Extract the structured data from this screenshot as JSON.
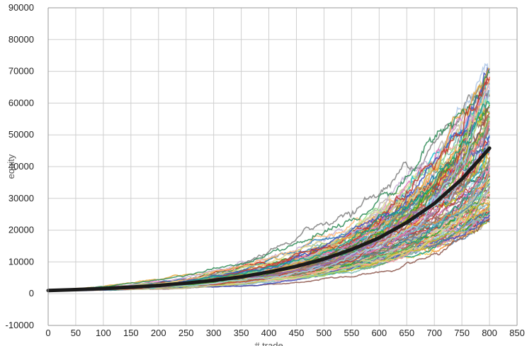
{
  "chart_data": {
    "type": "line",
    "title": "",
    "xlabel": "# trade",
    "ylabel": "equity",
    "xlim": [
      0,
      850
    ],
    "ylim": [
      -10000,
      90000
    ],
    "x_ticks": [
      0,
      50,
      100,
      150,
      200,
      250,
      300,
      350,
      400,
      450,
      500,
      550,
      600,
      650,
      700,
      750,
      800,
      850
    ],
    "y_ticks": [
      -10000,
      0,
      10000,
      20000,
      30000,
      40000,
      50000,
      60000,
      70000,
      80000,
      90000
    ],
    "grid": true,
    "legend": "none",
    "n_trades": 800,
    "start_equity": 1000,
    "simulated_paths": {
      "count": 120,
      "final_equity_min": 20000,
      "final_equity_max": 81000,
      "colors": [
        "#4e79a7",
        "#f28e2b",
        "#e15759",
        "#76b7b2",
        "#59a14f",
        "#edc948",
        "#b07aa1",
        "#ff9da7",
        "#9c755f",
        "#bab0ac",
        "#1f77b4",
        "#17becf",
        "#bcbd22",
        "#d62728",
        "#2ca02c",
        "#9467bd",
        "#8c564b",
        "#e377c2",
        "#7f7f7f",
        "#aec7e8",
        "#ffbb78",
        "#98df8a",
        "#c5b0d5",
        "#dbdb8d",
        "#9edae5",
        "#3b4cc0",
        "#e6a532",
        "#2e8b57",
        "#c0392b",
        "#16a085"
      ]
    },
    "mean_path": {
      "x": [
        0,
        50,
        100,
        150,
        200,
        250,
        300,
        350,
        400,
        450,
        500,
        550,
        600,
        650,
        700,
        750,
        800
      ],
      "y": [
        1000,
        1270,
        1610,
        2050,
        2600,
        3300,
        4200,
        5300,
        6800,
        8600,
        10900,
        13900,
        17600,
        22400,
        28400,
        36100,
        45800
      ],
      "color": "#1a1a1a"
    }
  }
}
